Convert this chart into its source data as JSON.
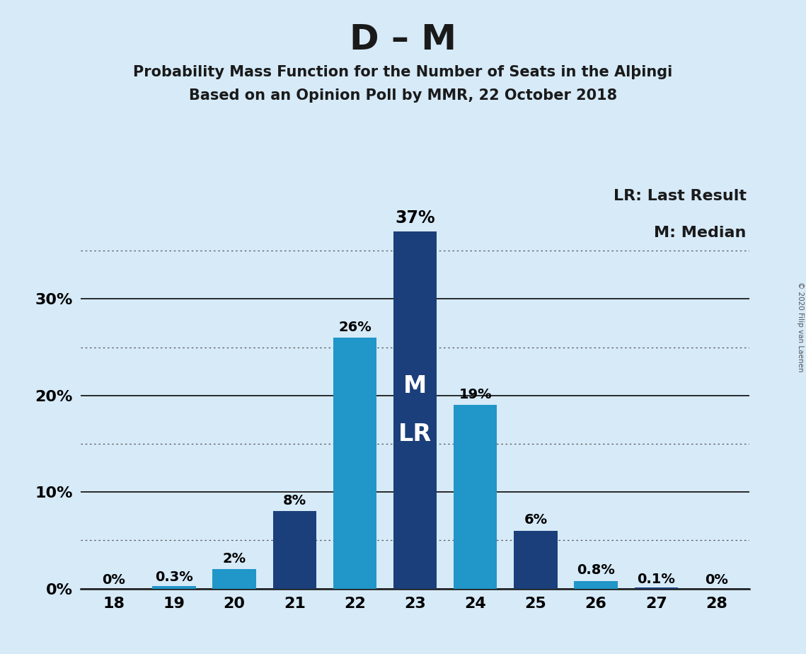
{
  "title": "D – M",
  "subtitle1": "Probability Mass Function for the Number of Seats in the Alþingi",
  "subtitle2": "Based on an Opinion Poll by MMR, 22 October 2018",
  "copyright": "© 2020 Filip van Laenen",
  "legend_lr": "LR: Last Result",
  "legend_m": "M: Median",
  "categories": [
    18,
    19,
    20,
    21,
    22,
    23,
    24,
    25,
    26,
    27,
    28
  ],
  "values": [
    0.0,
    0.3,
    2.0,
    8.0,
    26.0,
    37.0,
    19.0,
    6.0,
    0.8,
    0.1,
    0.0
  ],
  "labels": [
    "0%",
    "0.3%",
    "2%",
    "8%",
    "26%",
    "37%",
    "19%",
    "6%",
    "0.8%",
    "0.1%",
    "0%"
  ],
  "bar_colors": [
    "#1b3f7a",
    "#2196c8",
    "#2196c8",
    "#1b3f7a",
    "#2196c8",
    "#1b3f7a",
    "#2196c8",
    "#1b3f7a",
    "#2196c8",
    "#1b3f7a",
    "#1b3f7a"
  ],
  "median_bar": 23,
  "lr_bar": 23,
  "median_label": "M",
  "lr_label": "LR",
  "background_color": "#d6eaf8",
  "plot_background_color": "#d6eaf8",
  "solid_grid_lines": [
    0,
    10,
    20,
    30
  ],
  "dotted_grid_lines": [
    5,
    15,
    25,
    35
  ],
  "ylim": [
    0,
    42
  ],
  "title_fontsize": 36,
  "subtitle_fontsize": 15,
  "label_fontsize": 14,
  "tick_fontsize": 16,
  "legend_fontsize": 15,
  "ytick_labels": {
    "0": "0%",
    "10": "10%",
    "20": "20%",
    "30": "30%"
  }
}
